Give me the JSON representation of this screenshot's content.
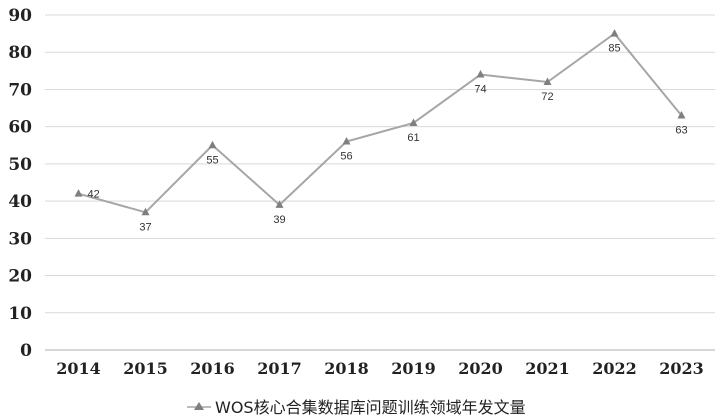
{
  "chart_data": {
    "type": "line",
    "categories": [
      "2014",
      "2015",
      "2016",
      "2017",
      "2018",
      "2019",
      "2020",
      "2021",
      "2022",
      "2023"
    ],
    "series": [
      {
        "name": "WOS核心合集数据库问题训练领域年发文量",
        "values": [
          42,
          37,
          55,
          39,
          56,
          61,
          74,
          72,
          85,
          63
        ]
      }
    ],
    "data_labels": [
      "42",
      "37",
      "55",
      "39",
      "56",
      "61",
      "74",
      "72",
      "85",
      "63"
    ],
    "yticks": [
      "0",
      "10",
      "20",
      "30",
      "40",
      "50",
      "60",
      "70",
      "80",
      "90"
    ],
    "ylim": [
      0,
      90
    ],
    "grid": true,
    "legend_position": "bottom",
    "marker": "triangle",
    "colors": {
      "line": "#a6a6a6",
      "marker": "#7f7f7f",
      "grid": "#d9d9d9",
      "axis": "#bfbfbf"
    }
  }
}
